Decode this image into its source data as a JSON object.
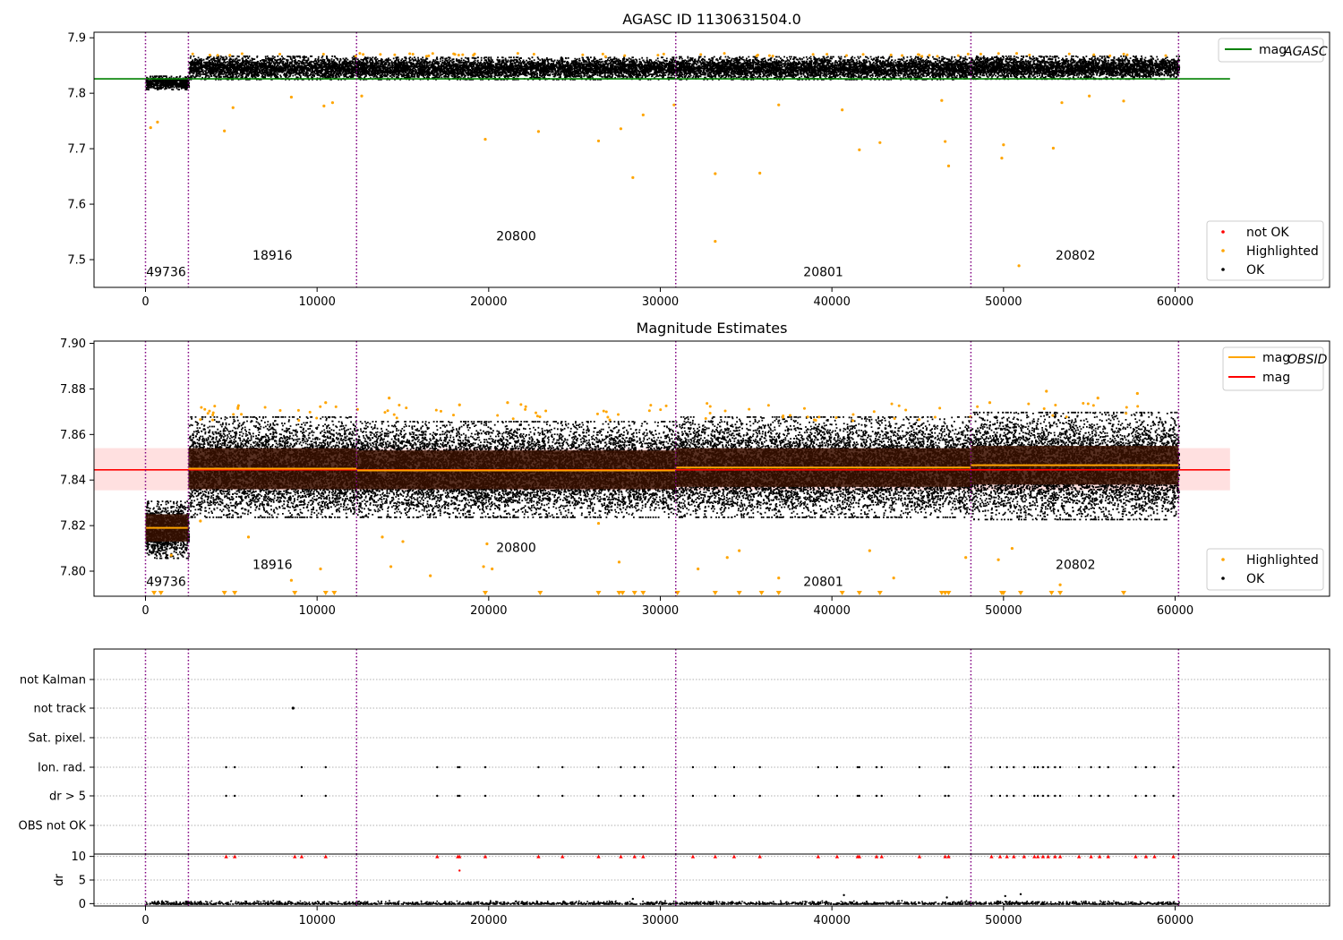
{
  "chart_data": [
    {
      "type": "scatter",
      "title": "AGASC ID 1130631504.0",
      "xlim": [
        -3000,
        69000
      ],
      "ylim": [
        7.45,
        7.91
      ],
      "xticks": [
        "0",
        "10000",
        "20000",
        "30000",
        "40000",
        "50000",
        "60000"
      ],
      "yticks": [
        "7.5",
        "7.6",
        "7.7",
        "7.8",
        "7.9"
      ],
      "obsid_boundaries": [
        0,
        2500,
        12300,
        30900,
        48100,
        60200
      ],
      "obsids": [
        {
          "label": "49736",
          "x": 1200,
          "y": 7.47
        },
        {
          "label": "18916",
          "x": 7400,
          "y": 7.5
        },
        {
          "label": "20800",
          "x": 21600,
          "y": 7.535
        },
        {
          "label": "20801",
          "x": 39500,
          "y": 7.47
        },
        {
          "label": "20802",
          "x": 54200,
          "y": 7.5
        }
      ],
      "mag_agasc": {
        "value": 7.826,
        "xrange": [
          -3000,
          63200
        ]
      },
      "segment_bands": [
        {
          "x0": 0,
          "x1": 2500,
          "ymin": 7.808,
          "ymax": 7.832
        },
        {
          "x0": 2500,
          "x1": 12300,
          "ymin": 7.826,
          "ymax": 7.868
        },
        {
          "x0": 12300,
          "x1": 30900,
          "ymin": 7.826,
          "ymax": 7.866
        },
        {
          "x0": 30900,
          "x1": 48100,
          "ymin": 7.826,
          "ymax": 7.867
        },
        {
          "x0": 48100,
          "x1": 60200,
          "ymin": 7.827,
          "ymax": 7.868
        }
      ],
      "highlighted_points": [
        [
          300,
          7.738
        ],
        [
          700,
          7.748
        ],
        [
          4600,
          7.732
        ],
        [
          5100,
          7.774
        ],
        [
          8500,
          7.793
        ],
        [
          10400,
          7.777
        ],
        [
          10900,
          7.783
        ],
        [
          12600,
          7.795
        ],
        [
          19800,
          7.717
        ],
        [
          22900,
          7.731
        ],
        [
          26400,
          7.714
        ],
        [
          27700,
          7.736
        ],
        [
          28400,
          7.648
        ],
        [
          29000,
          7.761
        ],
        [
          30800,
          7.779
        ],
        [
          33200,
          7.655
        ],
        [
          35800,
          7.656
        ],
        [
          36900,
          7.779
        ],
        [
          40600,
          7.77
        ],
        [
          42800,
          7.711
        ],
        [
          41600,
          7.698
        ],
        [
          46400,
          7.787
        ],
        [
          46600,
          7.713
        ],
        [
          46800,
          7.669
        ],
        [
          49900,
          7.683
        ],
        [
          50000,
          7.707
        ],
        [
          52900,
          7.701
        ],
        [
          53400,
          7.783
        ],
        [
          57000,
          7.786
        ],
        [
          55000,
          7.795
        ]
      ],
      "ok_outliers": [
        [
          33200,
          7.533
        ],
        [
          50900,
          7.489
        ]
      ],
      "legend_top": [
        {
          "label": "mag",
          "sub": "AGASC",
          "color": "#008000"
        }
      ],
      "legend_bottom": [
        {
          "label": "not OK",
          "color": "#ff0000"
        },
        {
          "label": "Highlighted",
          "color": "#ffa500"
        },
        {
          "label": "OK",
          "color": "#000000"
        }
      ]
    },
    {
      "type": "scatter",
      "title": "Magnitude Estimates",
      "xlim": [
        -3000,
        69000
      ],
      "ylim": [
        7.789,
        7.901
      ],
      "xticks": [
        "0",
        "10000",
        "20000",
        "30000",
        "40000",
        "50000",
        "60000"
      ],
      "yticks": [
        "7.80",
        "7.82",
        "7.84",
        "7.86",
        "7.88",
        "7.90"
      ],
      "obsid_boundaries": [
        0,
        2500,
        12300,
        30900,
        48100,
        60200
      ],
      "obsids": [
        {
          "label": "49736",
          "x": 1200,
          "y": 7.7935
        },
        {
          "label": "18916",
          "x": 7400,
          "y": 7.801
        },
        {
          "label": "20800",
          "x": 21600,
          "y": 7.8085
        },
        {
          "label": "20801",
          "x": 39500,
          "y": 7.7935
        },
        {
          "label": "20802",
          "x": 54200,
          "y": 7.801
        }
      ],
      "mag": {
        "value": 7.8445,
        "band": [
          7.8355,
          7.854
        ],
        "xrange": [
          -3000,
          63200
        ]
      },
      "mag_obsid_segments": [
        {
          "x0": 0,
          "x1": 2500,
          "value": 7.819,
          "std_lo": 7.813,
          "std_hi": 7.825,
          "ymin": 7.806,
          "ymax": 7.831
        },
        {
          "x0": 2500,
          "x1": 12300,
          "value": 7.845,
          "std_lo": 7.836,
          "std_hi": 7.854,
          "ymin": 7.824,
          "ymax": 7.868
        },
        {
          "x0": 12300,
          "x1": 30900,
          "value": 7.8442,
          "std_lo": 7.836,
          "std_hi": 7.853,
          "ymin": 7.824,
          "ymax": 7.866
        },
        {
          "x0": 30900,
          "x1": 48100,
          "value": 7.8455,
          "std_lo": 7.837,
          "std_hi": 7.854,
          "ymin": 7.824,
          "ymax": 7.868
        },
        {
          "x0": 48100,
          "x1": 60200,
          "value": 7.8465,
          "std_lo": 7.838,
          "std_hi": 7.855,
          "ymin": 7.823,
          "ymax": 7.87
        }
      ],
      "highlighted_points": [
        [
          3200,
          7.822
        ],
        [
          6000,
          7.815
        ],
        [
          8500,
          7.796
        ],
        [
          10200,
          7.801
        ],
        [
          13800,
          7.815
        ],
        [
          14300,
          7.802
        ],
        [
          15000,
          7.813
        ],
        [
          16600,
          7.798
        ],
        [
          19700,
          7.802
        ],
        [
          20200,
          7.801
        ],
        [
          19900,
          7.812
        ],
        [
          26400,
          7.821
        ],
        [
          27600,
          7.804
        ],
        [
          32200,
          7.801
        ],
        [
          33900,
          7.806
        ],
        [
          34600,
          7.809
        ],
        [
          36900,
          7.797
        ],
        [
          42200,
          7.809
        ],
        [
          43600,
          7.797
        ],
        [
          47800,
          7.806
        ],
        [
          49700,
          7.805
        ],
        [
          50500,
          7.81
        ],
        [
          53300,
          7.794
        ],
        [
          1500,
          7.807
        ],
        [
          14200,
          7.876
        ],
        [
          18300,
          7.873
        ],
        [
          21100,
          7.874
        ],
        [
          52500,
          7.879
        ],
        [
          57800,
          7.878
        ],
        [
          55500,
          7.876
        ],
        [
          10500,
          7.874
        ],
        [
          49200,
          7.874
        ]
      ],
      "clipped_x": [
        500,
        900,
        4600,
        5200,
        8700,
        10500,
        11000,
        19800,
        23000,
        26400,
        27600,
        27800,
        28500,
        29000,
        31000,
        33200,
        34600,
        35900,
        36900,
        40600,
        42800,
        41600,
        46400,
        46600,
        46800,
        49900,
        50000,
        51000,
        52800,
        53300,
        57000
      ],
      "legend_top": [
        {
          "label": "mag",
          "sub": "OBSID",
          "color": "#ffa500"
        },
        {
          "label": "mag",
          "sub": "",
          "color": "#ff0000"
        }
      ],
      "legend_bottom": [
        {
          "label": "Highlighted",
          "color": "#ffa500"
        },
        {
          "label": "OK",
          "color": "#000000"
        }
      ]
    },
    {
      "type": "scatter",
      "title": "",
      "xlim": [
        -3000,
        69000
      ],
      "categories": [
        "not Kalman",
        "not track",
        "Sat. pixel.",
        "Ion. rad.",
        "dr > 5",
        "OBS not OK"
      ],
      "obsid_boundaries": [
        0,
        2500,
        12300,
        30900,
        48100,
        60200
      ],
      "not_track_x": [
        8600
      ],
      "flag_x": [
        4700,
        5200,
        9100,
        10500,
        17000,
        18200,
        18300,
        19800,
        22900,
        24300,
        26400,
        27700,
        28500,
        29000,
        31900,
        33200,
        34300,
        35800,
        39200,
        40300,
        41500,
        41600,
        42600,
        42900,
        45100,
        46600,
        46800,
        49300,
        49800,
        50200,
        50600,
        51200,
        51800,
        52000,
        52300,
        52600,
        53000,
        53300,
        54400,
        55100,
        55600,
        56100,
        57700,
        58300,
        58800,
        59900
      ]
    },
    {
      "type": "scatter",
      "title": "",
      "xlim": [
        -3000,
        69000
      ],
      "ylim": [
        -0.5,
        10.5
      ],
      "xticks": [
        "0",
        "10000",
        "20000",
        "30000",
        "40000",
        "50000",
        "60000"
      ],
      "yticks": [
        "0",
        "5",
        "10"
      ],
      "ylabel": "dr",
      "obsid_boundaries": [
        0,
        2500,
        12300,
        30900,
        48100,
        60200
      ],
      "capped_x": [
        4700,
        5200,
        8700,
        9100,
        10500,
        17000,
        18200,
        18300,
        19800,
        22900,
        24300,
        26400,
        27700,
        28500,
        29000,
        31900,
        33200,
        34300,
        35800,
        39200,
        40300,
        41500,
        41600,
        42600,
        42900,
        45100,
        46600,
        46800,
        49300,
        49800,
        50200,
        50600,
        51200,
        51800,
        52000,
        52300,
        52600,
        53000,
        53300,
        54400,
        55100,
        55600,
        56100,
        57700,
        58300,
        58800,
        59900
      ],
      "extra_points": [
        [
          18300,
          7.0
        ],
        [
          40700,
          1.8
        ],
        [
          46700,
          1.3
        ],
        [
          50100,
          1.6
        ],
        [
          51000,
          2.0
        ],
        [
          28400,
          1.0
        ]
      ]
    }
  ]
}
